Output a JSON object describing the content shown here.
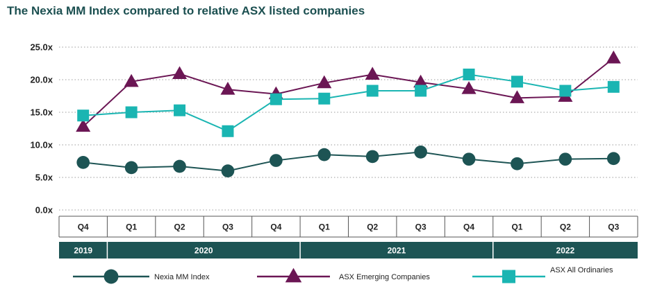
{
  "title": "The Nexia MM Index compared to relative ASX listed companies",
  "chart_data": {
    "type": "line",
    "categories": [
      "Q4",
      "Q1",
      "Q2",
      "Q3",
      "Q4",
      "Q1",
      "Q2",
      "Q3",
      "Q4",
      "Q1",
      "Q2",
      "Q3"
    ],
    "years": [
      {
        "label": "2019",
        "start": 0,
        "end": 0
      },
      {
        "label": "2020",
        "start": 1,
        "end": 4
      },
      {
        "label": "2021",
        "start": 5,
        "end": 8
      },
      {
        "label": "2022",
        "start": 9,
        "end": 11
      }
    ],
    "y_ticks": [
      "0.0x",
      "5.0x",
      "10.0x",
      "15.0x",
      "20.0x",
      "25.0x"
    ],
    "ylim": [
      0,
      25
    ],
    "grid": "horizontal dotted",
    "legend_position": "bottom",
    "series": [
      {
        "name": "Nexia MM Index",
        "marker": "circle",
        "color": "#1d5454",
        "values": [
          7.3,
          6.5,
          6.7,
          6.0,
          7.6,
          8.5,
          8.2,
          8.9,
          7.8,
          7.1,
          7.8,
          7.9
        ]
      },
      {
        "name": "ASX Emerging Companies",
        "marker": "triangle",
        "color": "#6b1654",
        "values": [
          12.8,
          19.7,
          20.9,
          18.5,
          17.8,
          19.5,
          20.8,
          19.6,
          18.6,
          17.2,
          17.4,
          23.3
        ]
      },
      {
        "name": "ASX All Ordinaries",
        "marker": "square",
        "color": "#1ab5b2",
        "values": [
          14.5,
          15.0,
          15.3,
          12.1,
          17.0,
          17.1,
          18.3,
          18.3,
          20.8,
          19.7,
          18.3,
          18.9
        ]
      }
    ]
  }
}
